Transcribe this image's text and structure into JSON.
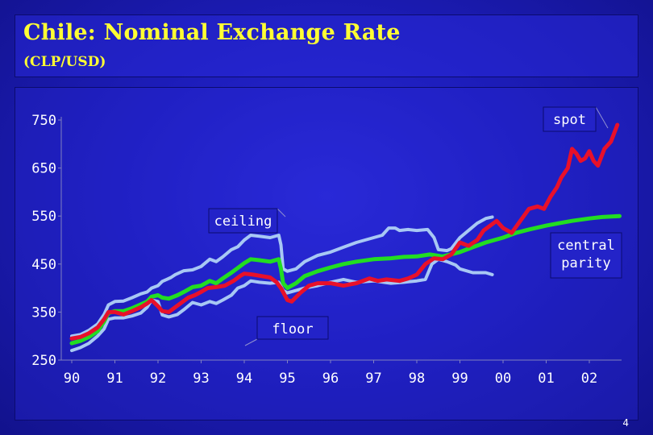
{
  "header": {
    "title": "Chile: Nominal Exchange Rate",
    "subtitle": "(CLP/USD)"
  },
  "footer": {
    "page_number": "4"
  },
  "colors": {
    "spot": "#e8102a",
    "central_parity": "#22dd22",
    "band": "#a8c8f4",
    "text": "#ffffff",
    "title": "#ffff33",
    "callout_fill": "#2323c8"
  },
  "chart_data": {
    "type": "line",
    "title": "Chile: Nominal Exchange Rate",
    "subtitle": "(CLP/USD)",
    "xlabel": "",
    "ylabel": "",
    "xlim": [
      1990,
      2002.7
    ],
    "ylim": [
      250,
      750
    ],
    "x_ticks": [
      {
        "value": 1990,
        "label": "90"
      },
      {
        "value": 1991,
        "label": "91"
      },
      {
        "value": 1992,
        "label": "92"
      },
      {
        "value": 1993,
        "label": "93"
      },
      {
        "value": 1994,
        "label": "94"
      },
      {
        "value": 1995,
        "label": "95"
      },
      {
        "value": 1996,
        "label": "96"
      },
      {
        "value": 1997,
        "label": "97"
      },
      {
        "value": 1998,
        "label": "98"
      },
      {
        "value": 1999,
        "label": "99"
      },
      {
        "value": 2000,
        "label": "00"
      },
      {
        "value": 2001,
        "label": "01"
      },
      {
        "value": 2002,
        "label": "02"
      }
    ],
    "y_ticks": [
      {
        "value": 750,
        "label": "750"
      },
      {
        "value": 650,
        "label": "650"
      },
      {
        "value": 550,
        "label": "550"
      },
      {
        "value": 450,
        "label": "450"
      },
      {
        "value": 350,
        "label": "350"
      },
      {
        "value": 250,
        "label": "250"
      }
    ],
    "grid": false,
    "series": [
      {
        "name": "ceiling",
        "color": "#a8c8f4",
        "points": [
          [
            1990.0,
            300
          ],
          [
            1990.2,
            303
          ],
          [
            1990.4,
            312
          ],
          [
            1990.6,
            325
          ],
          [
            1990.75,
            345
          ],
          [
            1990.85,
            365
          ],
          [
            1991.0,
            372
          ],
          [
            1991.2,
            373
          ],
          [
            1991.4,
            380
          ],
          [
            1991.6,
            388
          ],
          [
            1991.75,
            392
          ],
          [
            1991.85,
            400
          ],
          [
            1992.0,
            405
          ],
          [
            1992.1,
            414
          ],
          [
            1992.2,
            418
          ],
          [
            1992.3,
            422
          ],
          [
            1992.4,
            428
          ],
          [
            1992.6,
            436
          ],
          [
            1992.8,
            438
          ],
          [
            1993.0,
            445
          ],
          [
            1993.2,
            460
          ],
          [
            1993.35,
            455
          ],
          [
            1993.5,
            465
          ],
          [
            1993.7,
            480
          ],
          [
            1993.85,
            486
          ],
          [
            1994.0,
            500
          ],
          [
            1994.15,
            510
          ],
          [
            1994.35,
            508
          ],
          [
            1994.6,
            505
          ],
          [
            1994.8,
            510
          ],
          [
            1994.85,
            490
          ],
          [
            1994.9,
            440
          ],
          [
            1995.0,
            435
          ],
          [
            1995.2,
            440
          ],
          [
            1995.4,
            455
          ],
          [
            1995.7,
            468
          ],
          [
            1996.0,
            475
          ],
          [
            1996.3,
            485
          ],
          [
            1996.6,
            495
          ],
          [
            1997.0,
            505
          ],
          [
            1997.2,
            510
          ],
          [
            1997.35,
            525
          ],
          [
            1997.5,
            525
          ],
          [
            1997.6,
            520
          ],
          [
            1997.8,
            522
          ],
          [
            1998.0,
            520
          ],
          [
            1998.25,
            522
          ],
          [
            1998.4,
            505
          ],
          [
            1998.5,
            480
          ],
          [
            1998.7,
            478
          ],
          [
            1998.8,
            482
          ],
          [
            1999.0,
            505
          ],
          [
            1999.2,
            520
          ],
          [
            1999.4,
            535
          ],
          [
            1999.6,
            545
          ],
          [
            1999.75,
            548
          ]
        ]
      },
      {
        "name": "floor",
        "color": "#a8c8f4",
        "points": [
          [
            1990.0,
            270
          ],
          [
            1990.2,
            276
          ],
          [
            1990.4,
            285
          ],
          [
            1990.6,
            300
          ],
          [
            1990.75,
            315
          ],
          [
            1990.85,
            335
          ],
          [
            1991.0,
            338
          ],
          [
            1991.2,
            338
          ],
          [
            1991.4,
            342
          ],
          [
            1991.6,
            348
          ],
          [
            1991.75,
            360
          ],
          [
            1991.85,
            375
          ],
          [
            1992.0,
            372
          ],
          [
            1992.1,
            344
          ],
          [
            1992.25,
            340
          ],
          [
            1992.45,
            345
          ],
          [
            1992.6,
            355
          ],
          [
            1992.8,
            370
          ],
          [
            1993.0,
            365
          ],
          [
            1993.2,
            372
          ],
          [
            1993.35,
            368
          ],
          [
            1993.5,
            375
          ],
          [
            1993.7,
            385
          ],
          [
            1993.85,
            400
          ],
          [
            1994.0,
            405
          ],
          [
            1994.15,
            415
          ],
          [
            1994.35,
            412
          ],
          [
            1994.6,
            410
          ],
          [
            1994.8,
            412
          ],
          [
            1994.9,
            395
          ],
          [
            1995.0,
            390
          ],
          [
            1995.2,
            395
          ],
          [
            1995.4,
            400
          ],
          [
            1995.7,
            405
          ],
          [
            1996.0,
            412
          ],
          [
            1996.3,
            418
          ],
          [
            1996.6,
            412
          ],
          [
            1997.0,
            415
          ],
          [
            1997.4,
            410
          ],
          [
            1997.7,
            412
          ],
          [
            1998.0,
            415
          ],
          [
            1998.2,
            418
          ],
          [
            1998.35,
            450
          ],
          [
            1998.5,
            460
          ],
          [
            1998.7,
            455
          ],
          [
            1998.9,
            448
          ],
          [
            1999.0,
            440
          ],
          [
            1999.3,
            432
          ],
          [
            1999.6,
            432
          ],
          [
            1999.75,
            428
          ]
        ]
      },
      {
        "name": "central parity",
        "color": "#22dd22",
        "points": [
          [
            1990.0,
            285
          ],
          [
            1990.2,
            290
          ],
          [
            1990.4,
            298
          ],
          [
            1990.6,
            310
          ],
          [
            1990.75,
            330
          ],
          [
            1990.85,
            348
          ],
          [
            1991.0,
            352
          ],
          [
            1991.2,
            352
          ],
          [
            1991.4,
            358
          ],
          [
            1991.6,
            366
          ],
          [
            1991.75,
            372
          ],
          [
            1991.85,
            382
          ],
          [
            1992.0,
            385
          ],
          [
            1992.1,
            380
          ],
          [
            1992.25,
            378
          ],
          [
            1992.45,
            385
          ],
          [
            1992.6,
            392
          ],
          [
            1992.8,
            402
          ],
          [
            1993.0,
            405
          ],
          [
            1993.2,
            415
          ],
          [
            1993.35,
            410
          ],
          [
            1993.5,
            420
          ],
          [
            1993.7,
            432
          ],
          [
            1993.85,
            442
          ],
          [
            1994.0,
            452
          ],
          [
            1994.15,
            460
          ],
          [
            1994.35,
            458
          ],
          [
            1994.6,
            455
          ],
          [
            1994.8,
            460
          ],
          [
            1994.85,
            440
          ],
          [
            1994.9,
            410
          ],
          [
            1995.0,
            400
          ],
          [
            1995.2,
            410
          ],
          [
            1995.4,
            425
          ],
          [
            1995.7,
            435
          ],
          [
            1996.0,
            443
          ],
          [
            1996.3,
            450
          ],
          [
            1996.6,
            455
          ],
          [
            1997.0,
            460
          ],
          [
            1997.4,
            462
          ],
          [
            1997.7,
            465
          ],
          [
            1998.0,
            466
          ],
          [
            1998.3,
            470
          ],
          [
            1998.6,
            466
          ],
          [
            1999.0,
            475
          ],
          [
            1999.3,
            485
          ],
          [
            1999.6,
            495
          ],
          [
            2000.0,
            505
          ],
          [
            2000.3,
            515
          ],
          [
            2000.6,
            522
          ],
          [
            2001.0,
            530
          ],
          [
            2001.3,
            535
          ],
          [
            2001.6,
            540
          ],
          [
            2002.0,
            545
          ],
          [
            2002.3,
            548
          ],
          [
            2002.7,
            550
          ]
        ]
      },
      {
        "name": "spot",
        "color": "#e8102a",
        "points": [
          [
            1990.0,
            295
          ],
          [
            1990.2,
            298
          ],
          [
            1990.4,
            306
          ],
          [
            1990.6,
            318
          ],
          [
            1990.75,
            335
          ],
          [
            1990.85,
            350
          ],
          [
            1991.0,
            350
          ],
          [
            1991.2,
            345
          ],
          [
            1991.4,
            352
          ],
          [
            1991.6,
            360
          ],
          [
            1991.75,
            368
          ],
          [
            1991.85,
            375
          ],
          [
            1992.0,
            362
          ],
          [
            1992.1,
            352
          ],
          [
            1992.25,
            350
          ],
          [
            1992.4,
            360
          ],
          [
            1992.55,
            370
          ],
          [
            1992.7,
            380
          ],
          [
            1992.85,
            385
          ],
          [
            1993.0,
            392
          ],
          [
            1993.15,
            400
          ],
          [
            1993.35,
            402
          ],
          [
            1993.55,
            405
          ],
          [
            1993.75,
            415
          ],
          [
            1993.9,
            425
          ],
          [
            1994.0,
            430
          ],
          [
            1994.2,
            428
          ],
          [
            1994.4,
            425
          ],
          [
            1994.6,
            422
          ],
          [
            1994.75,
            412
          ],
          [
            1994.85,
            400
          ],
          [
            1995.0,
            375
          ],
          [
            1995.1,
            372
          ],
          [
            1995.3,
            390
          ],
          [
            1995.5,
            405
          ],
          [
            1995.7,
            410
          ],
          [
            1996.0,
            410
          ],
          [
            1996.3,
            405
          ],
          [
            1996.6,
            410
          ],
          [
            1996.9,
            420
          ],
          [
            1997.1,
            415
          ],
          [
            1997.3,
            418
          ],
          [
            1997.6,
            415
          ],
          [
            1997.8,
            420
          ],
          [
            1998.0,
            428
          ],
          [
            1998.2,
            450
          ],
          [
            1998.4,
            462
          ],
          [
            1998.6,
            460
          ],
          [
            1998.8,
            470
          ],
          [
            1999.0,
            495
          ],
          [
            1999.2,
            488
          ],
          [
            1999.4,
            500
          ],
          [
            1999.55,
            520
          ],
          [
            1999.7,
            530
          ],
          [
            1999.85,
            540
          ],
          [
            2000.0,
            525
          ],
          [
            2000.2,
            515
          ],
          [
            2000.4,
            540
          ],
          [
            2000.6,
            565
          ],
          [
            2000.8,
            570
          ],
          [
            2000.95,
            565
          ],
          [
            2001.1,
            590
          ],
          [
            2001.25,
            610
          ],
          [
            2001.35,
            630
          ],
          [
            2001.5,
            650
          ],
          [
            2001.6,
            690
          ],
          [
            2001.7,
            680
          ],
          [
            2001.8,
            665
          ],
          [
            2001.9,
            670
          ],
          [
            2002.0,
            685
          ],
          [
            2002.1,
            665
          ],
          [
            2002.2,
            655
          ],
          [
            2002.35,
            690
          ],
          [
            2002.5,
            705
          ],
          [
            2002.65,
            740
          ]
        ]
      }
    ],
    "annotations": [
      {
        "text": "spot",
        "series": "spot"
      },
      {
        "text": "ceiling",
        "series": "ceiling"
      },
      {
        "text": "central\nparity",
        "series": "central parity"
      },
      {
        "text": "floor",
        "series": "floor"
      }
    ]
  }
}
